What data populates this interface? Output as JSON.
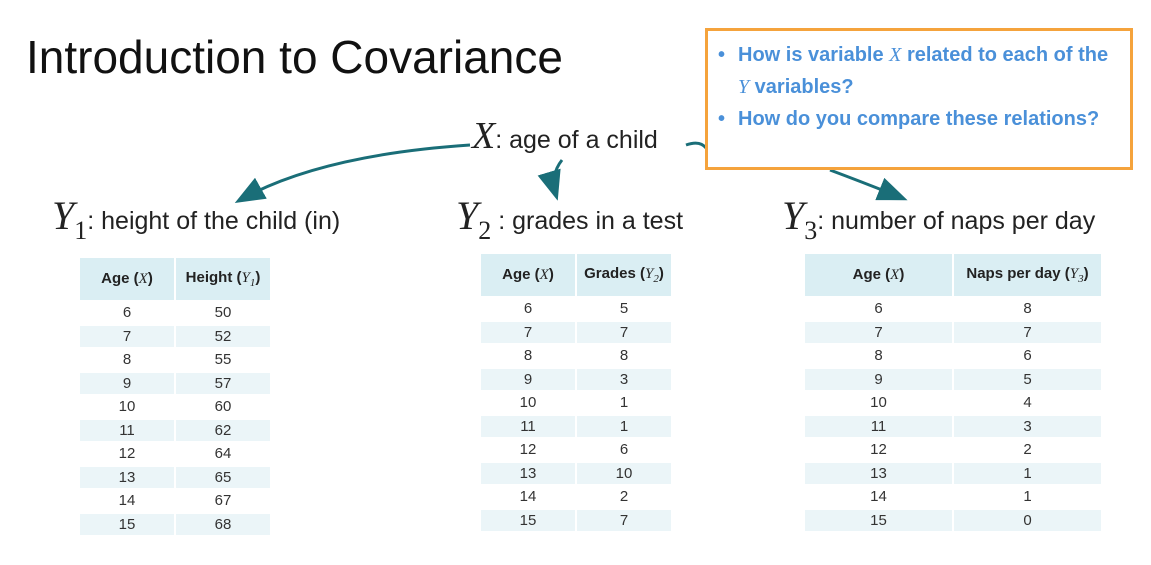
{
  "title": "Introduction to Covariance",
  "callout": {
    "q1_pre": "How is variable ",
    "q1_var": "X",
    "q1_mid": " related to each of the ",
    "q1_var2": "Y",
    "q1_post": " variables?",
    "q2": "How do you compare these relations?"
  },
  "x_variable": {
    "symbol": "X",
    "desc": ": age of a child"
  },
  "y_variables": [
    {
      "symbol": "Y",
      "sub": "1",
      "desc": ": height of the child (in)",
      "headers": [
        "Age",
        "X",
        "Height",
        "Y",
        "1"
      ],
      "rows": [
        [
          "6",
          "50"
        ],
        [
          "7",
          "52"
        ],
        [
          "8",
          "55"
        ],
        [
          "9",
          "57"
        ],
        [
          "10",
          "60"
        ],
        [
          "11",
          "62"
        ],
        [
          "12",
          "64"
        ],
        [
          "13",
          "65"
        ],
        [
          "14",
          "67"
        ],
        [
          "15",
          "68"
        ]
      ]
    },
    {
      "symbol": "Y",
      "sub": "2",
      "desc": " : grades in a test",
      "headers": [
        "Age",
        "X",
        "Grades",
        "Y",
        "2"
      ],
      "rows": [
        [
          "6",
          "5"
        ],
        [
          "7",
          "7"
        ],
        [
          "8",
          "8"
        ],
        [
          "9",
          "3"
        ],
        [
          "10",
          "1"
        ],
        [
          "11",
          "1"
        ],
        [
          "12",
          "6"
        ],
        [
          "13",
          "10"
        ],
        [
          "14",
          "2"
        ],
        [
          "15",
          "7"
        ]
      ]
    },
    {
      "symbol": "Y",
      "sub": "3",
      "desc": ": number of naps per day",
      "headers": [
        "Age",
        "X",
        "Naps per day",
        "Y",
        "3"
      ],
      "rows": [
        [
          "6",
          "8"
        ],
        [
          "7",
          "7"
        ],
        [
          "8",
          "6"
        ],
        [
          "9",
          "5"
        ],
        [
          "10",
          "4"
        ],
        [
          "11",
          "3"
        ],
        [
          "12",
          "2"
        ],
        [
          "13",
          "1"
        ],
        [
          "14",
          "1"
        ],
        [
          "15",
          "0"
        ]
      ]
    }
  ],
  "colors": {
    "arrow": "#1a6e78",
    "callout_border": "#f5a33c",
    "callout_text": "#4a90d9",
    "header_bg": "#daeef3",
    "stripe_bg": "#ebf5f8"
  }
}
